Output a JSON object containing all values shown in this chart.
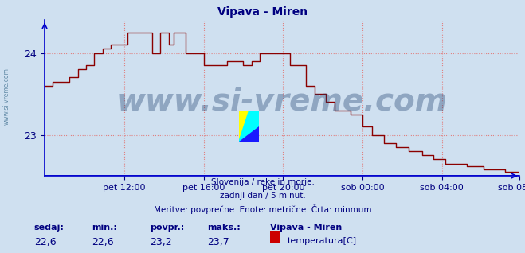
{
  "title": "Vipava - Miren",
  "title_color": "#000080",
  "bg_color": "#cfe0f0",
  "plot_bg_color": "#cfe0f0",
  "grid_color": "#e08080",
  "grid_style": ":",
  "axis_color": "#0000cc",
  "line_color": "#8b0000",
  "line_width": 1.0,
  "ylim": [
    22.5,
    24.4
  ],
  "yticks": [
    23,
    24
  ],
  "tick_color": "#000080",
  "xtick_labels": [
    "pet 12:00",
    "pet 16:00",
    "pet 20:00",
    "sob 00:00",
    "sob 04:00",
    "sob 08:00"
  ],
  "watermark_text": "www.si-vreme.com",
  "watermark_color": "#1a3a6a",
  "watermark_alpha": 0.35,
  "watermark_fontsize": 28,
  "footer_lines": [
    "Slovenija / reke in morje.",
    "zadnji dan / 5 minut.",
    "Meritve: povprečne  Enote: metrične  Črta: minmum"
  ],
  "footer_color": "#000080",
  "footer_fontsize": 7.5,
  "stats_labels": [
    "sedaj:",
    "min.:",
    "povpr.:",
    "maks.:"
  ],
  "stats_values": [
    "22,6",
    "22,6",
    "23,2",
    "23,7"
  ],
  "legend_station": "Vipava - Miren",
  "legend_label": "temperatura[C]",
  "legend_color": "#cc0000",
  "left_label": "www.si-vreme.com",
  "left_label_color": "#1a5276",
  "n_points": 288
}
